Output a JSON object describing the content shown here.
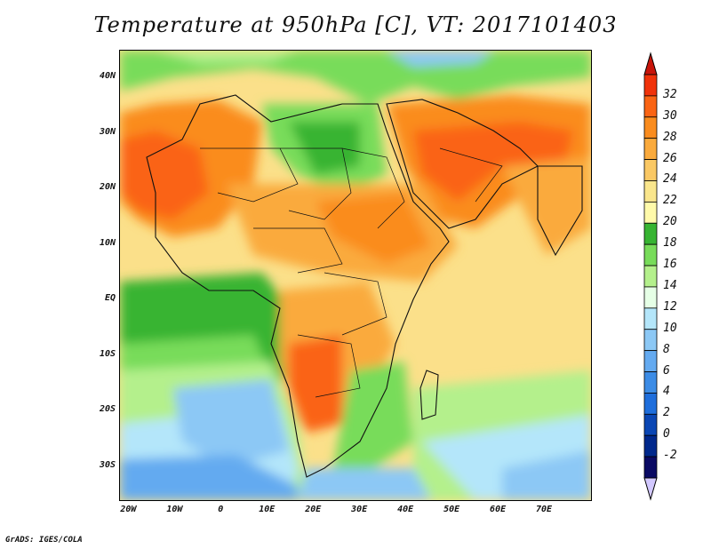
{
  "title": "Temperature at 950hPa [C], VT: 2017101403",
  "footer": "GrADS: IGES/COLA",
  "lat_labels": [
    {
      "label": "40N",
      "lat": 40
    },
    {
      "label": "30N",
      "lat": 30
    },
    {
      "label": "20N",
      "lat": 20
    },
    {
      "label": "10N",
      "lat": 10
    },
    {
      "label": "EQ",
      "lat": 0
    },
    {
      "label": "10S",
      "lat": -10
    },
    {
      "label": "20S",
      "lat": -20
    },
    {
      "label": "30S",
      "lat": -30
    }
  ],
  "lon_labels": [
    {
      "label": "20W",
      "lon": -20
    },
    {
      "label": "10W",
      "lon": -10
    },
    {
      "label": "0",
      "lon": 0
    },
    {
      "label": "10E",
      "lon": 10
    },
    {
      "label": "20E",
      "lon": 20
    },
    {
      "label": "30E",
      "lon": 30
    },
    {
      "label": "40E",
      "lon": 40
    },
    {
      "label": "50E",
      "lon": 50
    },
    {
      "label": "60E",
      "lon": 60
    },
    {
      "label": "70E",
      "lon": 70
    }
  ],
  "map_extent": {
    "lon_min": -22,
    "lon_max": 80,
    "lat_min": -36,
    "lat_max": 45
  },
  "colorbar": {
    "labels": [
      "32",
      "30",
      "28",
      "26",
      "24",
      "22",
      "20",
      "18",
      "16",
      "14",
      "12",
      "10",
      "8",
      "6",
      "4",
      "2",
      "0",
      "-2"
    ],
    "colors": [
      "#f0320a",
      "#fa6414",
      "#fa8c1e",
      "#faaa3c",
      "#fac864",
      "#fae68c",
      "#fffaaa",
      "#37b432",
      "#78dc5a",
      "#b4f08c",
      "#e6ffe6",
      "#b4e6fa",
      "#8cc8f5",
      "#64aaf0",
      "#3c8ce6",
      "#1e6edc",
      "#0a46b4",
      "#00288c",
      "#0a0a64"
    ],
    "top_arrow_color": "#c8140a",
    "bottom_arrow_color": "#d2c8ff"
  }
}
